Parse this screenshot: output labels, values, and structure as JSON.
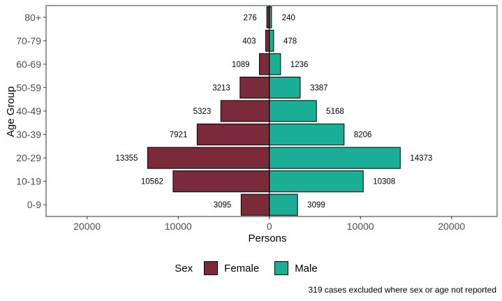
{
  "chart_data": {
    "type": "bar",
    "orientation": "horizontal-pyramid",
    "categories": [
      "0-9",
      "10-19",
      "20-29",
      "30-39",
      "40-49",
      "50-59",
      "60-69",
      "70-79",
      "80+"
    ],
    "series": [
      {
        "name": "Female",
        "color": "#7B2A3A",
        "values": [
          3095,
          10562,
          13355,
          7921,
          5323,
          3213,
          1089,
          403,
          276
        ]
      },
      {
        "name": "Male",
        "color": "#1AAE96",
        "values": [
          3099,
          10308,
          14373,
          8206,
          5168,
          3387,
          1236,
          478,
          240
        ]
      }
    ],
    "xlabel": "Persons",
    "ylabel": "Age Group",
    "xlim": [
      -24500,
      25000
    ],
    "x_ticks": [
      -20000,
      -10000,
      0,
      10000,
      20000
    ],
    "x_tick_labels": [
      "20000",
      "10000",
      "0",
      "10000",
      "20000"
    ],
    "legend": {
      "title": "Sex",
      "position": "bottom",
      "entries": [
        "Female",
        "Male"
      ]
    },
    "caption": "319 cases excluded where sex or age not reported"
  }
}
